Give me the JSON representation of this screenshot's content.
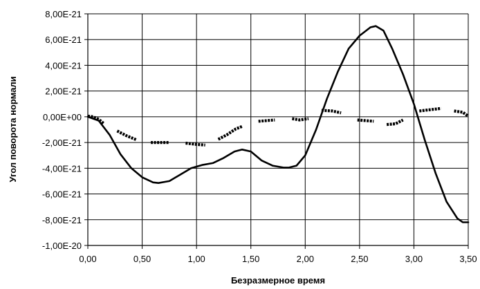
{
  "chart_data": {
    "type": "line",
    "title": "",
    "xlabel": "Безразмерное время",
    "ylabel": "Угол поворота нормали",
    "xlim": [
      0,
      3.5
    ],
    "ylim": [
      -1e-20,
      8e-21
    ],
    "grid": true,
    "legend": "none",
    "x_ticks": [
      {
        "value": 0.0,
        "label": "0,00"
      },
      {
        "value": 0.5,
        "label": "0,50"
      },
      {
        "value": 1.0,
        "label": "1,00"
      },
      {
        "value": 1.5,
        "label": "1,50"
      },
      {
        "value": 2.0,
        "label": "2,00"
      },
      {
        "value": 2.5,
        "label": "2,50"
      },
      {
        "value": 3.0,
        "label": "3,00"
      },
      {
        "value": 3.5,
        "label": "3,50"
      }
    ],
    "y_ticks": [
      {
        "value": 8e-21,
        "label": "8,00E-21"
      },
      {
        "value": 6e-21,
        "label": "6,00E-21"
      },
      {
        "value": 4e-21,
        "label": "4,00E-21"
      },
      {
        "value": 2e-21,
        "label": "2,00E-21"
      },
      {
        "value": 0.0,
        "label": "0,00E+00"
      },
      {
        "value": -2e-21,
        "label": "-2,00E-21"
      },
      {
        "value": -4e-21,
        "label": "-4,00E-21"
      },
      {
        "value": -6e-21,
        "label": "-6,00E-21"
      },
      {
        "value": -8e-21,
        "label": "-8,00E-21"
      },
      {
        "value": -1e-20,
        "label": "-1,00E-20"
      }
    ],
    "series": [
      {
        "style": "solid",
        "color": "#000000",
        "points": [
          [
            0.0,
            0.0
          ],
          [
            0.1,
            -3e-22
          ],
          [
            0.2,
            -1.4e-21
          ],
          [
            0.3,
            -2.9e-21
          ],
          [
            0.4,
            -4e-21
          ],
          [
            0.5,
            -4.7e-21
          ],
          [
            0.6,
            -5.1e-21
          ],
          [
            0.65,
            -5.15e-21
          ],
          [
            0.75,
            -5e-21
          ],
          [
            0.85,
            -4.5e-21
          ],
          [
            0.95,
            -4e-21
          ],
          [
            1.05,
            -3.75e-21
          ],
          [
            1.15,
            -3.6e-21
          ],
          [
            1.25,
            -3.2e-21
          ],
          [
            1.35,
            -2.7e-21
          ],
          [
            1.42,
            -2.55e-21
          ],
          [
            1.5,
            -2.7e-21
          ],
          [
            1.6,
            -3.4e-21
          ],
          [
            1.7,
            -3.8e-21
          ],
          [
            1.8,
            -3.95e-21
          ],
          [
            1.85,
            -3.95e-21
          ],
          [
            1.92,
            -3.8e-21
          ],
          [
            2.0,
            -3e-21
          ],
          [
            2.1,
            -1e-21
          ],
          [
            2.2,
            1.4e-21
          ],
          [
            2.3,
            3.5e-21
          ],
          [
            2.4,
            5.3e-21
          ],
          [
            2.5,
            6.3e-21
          ],
          [
            2.6,
            6.95e-21
          ],
          [
            2.65,
            7.05e-21
          ],
          [
            2.72,
            6.7e-21
          ],
          [
            2.8,
            5.3e-21
          ],
          [
            2.9,
            3.3e-21
          ],
          [
            3.0,
            1e-21
          ],
          [
            3.1,
            -1.8e-21
          ],
          [
            3.2,
            -4.4e-21
          ],
          [
            3.3,
            -6.6e-21
          ],
          [
            3.4,
            -7.9e-21
          ],
          [
            3.45,
            -8.2e-21
          ],
          [
            3.5,
            -8.2e-21
          ]
        ]
      },
      {
        "style": "markers-dashed",
        "color": "#000000",
        "segments": [
          [
            [
              0.0,
              5e-23
            ],
            [
              0.05,
              0.0
            ],
            [
              0.1,
              -2e-22
            ],
            [
              0.15,
              -5.5e-22
            ]
          ],
          [
            [
              0.27,
              -1.1e-21
            ],
            [
              0.35,
              -1.45e-21
            ],
            [
              0.45,
              -1.8e-21
            ]
          ],
          [
            [
              0.58,
              -2e-21
            ],
            [
              0.75,
              -2e-21
            ]
          ],
          [
            [
              0.9,
              -2.05e-21
            ],
            [
              1.0,
              -2.15e-21
            ],
            [
              1.08,
              -2.2e-21
            ]
          ],
          [
            [
              1.2,
              -1.75e-21
            ],
            [
              1.28,
              -1.4e-21
            ],
            [
              1.36,
              -9.5e-22
            ],
            [
              1.42,
              -7.5e-22
            ]
          ],
          [
            [
              1.57,
              -3.5e-22
            ],
            [
              1.72,
              -2.5e-22
            ]
          ],
          [
            [
              1.88,
              -1.5e-22
            ],
            [
              1.95,
              -2.5e-22
            ],
            [
              2.03,
              -1.5e-22
            ]
          ],
          [
            [
              2.15,
              5e-22
            ],
            [
              2.25,
              4.5e-22
            ],
            [
              2.33,
              3e-22
            ]
          ],
          [
            [
              2.48,
              -2.5e-22
            ],
            [
              2.63,
              -3.5e-22
            ]
          ],
          [
            [
              2.75,
              -6e-22
            ],
            [
              2.83,
              -5.5e-22
            ],
            [
              2.9,
              -2.5e-22
            ]
          ],
          [
            [
              3.05,
              4.5e-22
            ],
            [
              3.15,
              5.5e-22
            ],
            [
              3.25,
              6.5e-22
            ]
          ],
          [
            [
              3.37,
              4.5e-22
            ],
            [
              3.45,
              3.5e-22
            ],
            [
              3.5,
              5e-23
            ]
          ]
        ]
      }
    ]
  }
}
